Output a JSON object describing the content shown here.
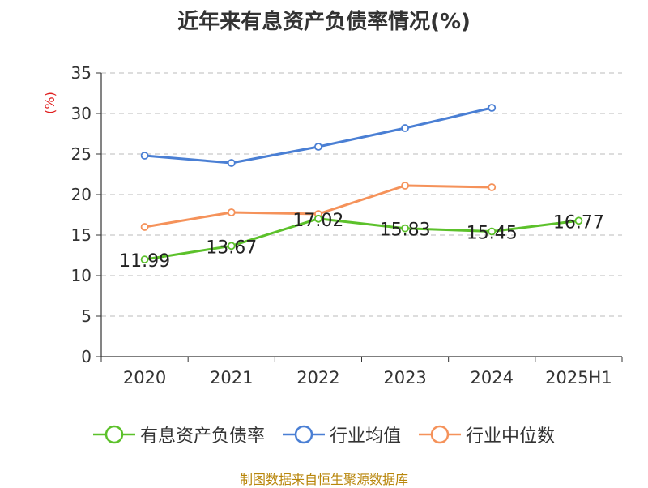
{
  "chart_data": {
    "type": "line",
    "title": "近年来有息资产负债率情况(%)",
    "ylabel": "(%)",
    "xlabel": "",
    "categories": [
      "2020",
      "2021",
      "2022",
      "2023",
      "2024",
      "2025H1"
    ],
    "ylim": [
      0,
      35
    ],
    "yticks": [
      0,
      5,
      10,
      15,
      20,
      25,
      30,
      35
    ],
    "grid": "horizontal-dashed",
    "legend_position": "bottom",
    "series": [
      {
        "name": "有息资产负债率",
        "color": "#5cc12b",
        "values": [
          11.99,
          13.67,
          17.02,
          15.83,
          15.45,
          16.77
        ],
        "labels": [
          "11.99",
          "13.67",
          "17.02",
          "15.83",
          "15.45",
          "16.77"
        ]
      },
      {
        "name": "行业均值",
        "color": "#4a7fd4",
        "values": [
          24.8,
          23.9,
          25.9,
          28.2,
          30.7,
          null
        ]
      },
      {
        "name": "行业中位数",
        "color": "#f5925a",
        "values": [
          16.0,
          17.8,
          17.6,
          21.1,
          20.9,
          null
        ]
      }
    ]
  },
  "source": "制图数据来自恒生聚源数据库"
}
